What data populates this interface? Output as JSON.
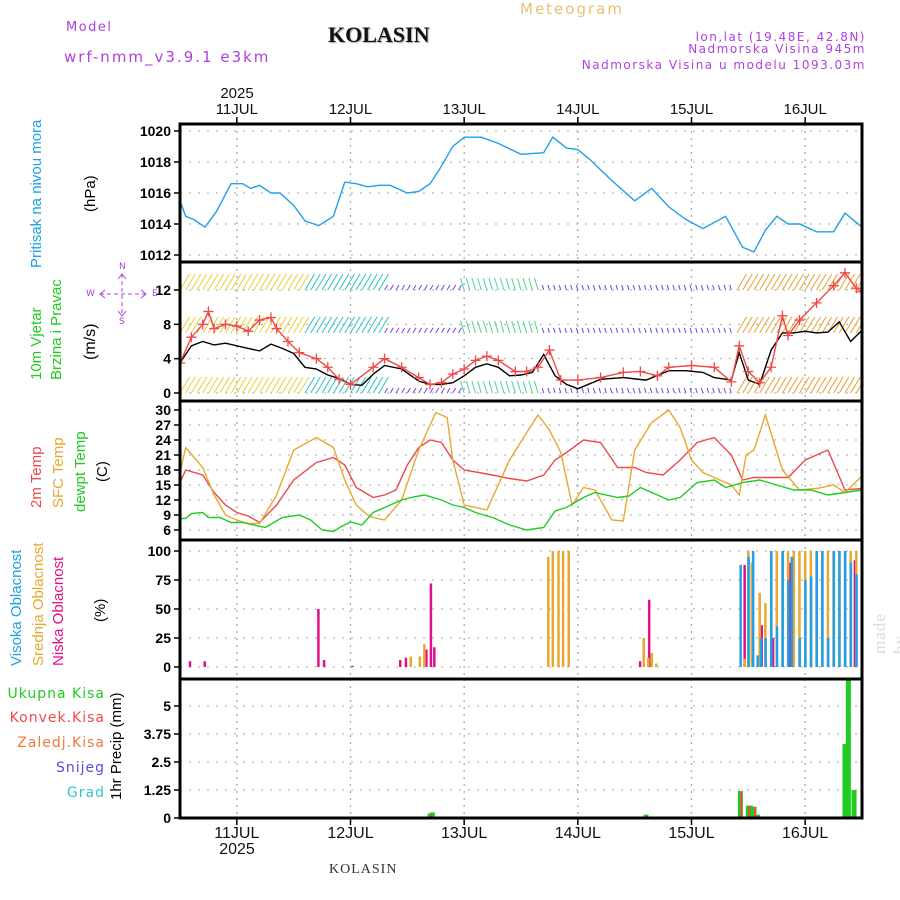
{
  "header": {
    "model_label": "Model",
    "model_name": "wrf-nmm_v3.9.1 e3km",
    "title": "KOLASIN",
    "subtitle": "Meteogram",
    "coords": "lon,lat (19.48E, 42.8N)",
    "elevation": "Nadmorska Visina 945m",
    "model_elevation": "Nadmorska Visina u modelu 1093.03m",
    "footer_station": "KOLASIN",
    "watermark": "made by Angel"
  },
  "colors": {
    "purple": "#b040e0",
    "gold": "#e8c070",
    "pressure": "#20a0e8",
    "temp2m": "#f04848",
    "sfctemp": "#e8a830",
    "dewpt": "#20cc20",
    "high_cloud": "#20a0e8",
    "mid_cloud": "#e8a830",
    "low_cloud": "#e0108a",
    "total_precip": "#20cc20",
    "conv_precip": "#f04848",
    "frz_precip": "#f07838",
    "snow": "#5050e0",
    "hail": "#30c8c8"
  },
  "time_axis": {
    "top_year": "2025",
    "bottom_year": "2025",
    "day_labels": [
      "11JUL",
      "12JUL",
      "13JUL",
      "14JUL",
      "15JUL",
      "16JUL"
    ],
    "start_day": 10.5,
    "end_day": 16.5
  },
  "chart_data": [
    {
      "type": "line",
      "name": "pressure",
      "ylabel_main": "Pritisak na nivou mora",
      "ylabel_unit": "(hPa)",
      "ylim": [
        1012,
        1020.5
      ],
      "yticks": [
        1012,
        1014,
        1016,
        1018,
        1020
      ],
      "ytick_labels": [
        "1012",
        "1014",
        "1016",
        "1018",
        "1020"
      ],
      "grid": true,
      "series": [
        {
          "name": "MSLP",
          "color_key": "pressure",
          "x": [
            10.5,
            10.55,
            10.62,
            10.72,
            10.82,
            10.95,
            11.05,
            11.12,
            11.2,
            11.3,
            11.38,
            11.5,
            11.6,
            11.72,
            11.85,
            11.95,
            12.05,
            12.15,
            12.25,
            12.35,
            12.5,
            12.6,
            12.7,
            12.78,
            12.9,
            13.0,
            13.15,
            13.3,
            13.5,
            13.7,
            13.78,
            13.9,
            14.0,
            14.1,
            14.3,
            14.5,
            14.65,
            14.8,
            14.95,
            15.1,
            15.3,
            15.45,
            15.55,
            15.65,
            15.75,
            15.85,
            15.95,
            16.1,
            16.25,
            16.35,
            16.45,
            16.5
          ],
          "values": [
            1015.5,
            1014.5,
            1014.3,
            1013.8,
            1014.8,
            1016.6,
            1016.6,
            1016.3,
            1016.5,
            1016.0,
            1016.0,
            1015.2,
            1014.2,
            1013.9,
            1014.5,
            1016.7,
            1016.6,
            1016.4,
            1016.5,
            1016.5,
            1016.0,
            1016.1,
            1016.6,
            1017.5,
            1019.0,
            1019.6,
            1019.6,
            1019.2,
            1018.5,
            1018.6,
            1019.6,
            1018.9,
            1018.8,
            1018.2,
            1016.8,
            1015.5,
            1016.3,
            1015.1,
            1014.3,
            1013.7,
            1014.5,
            1012.5,
            1012.2,
            1013.6,
            1014.5,
            1014.0,
            1014.0,
            1013.5,
            1013.5,
            1014.7,
            1014.1,
            1013.8
          ]
        }
      ]
    },
    {
      "type": "line",
      "name": "wind",
      "ylabel_main": "10m Vjetar",
      "ylabel_sub": "Brzina i Pravac",
      "ylabel_unit": "(m/s)",
      "compass": {
        "n": "N",
        "s": "S",
        "e": "E",
        "w": "W"
      },
      "ylim": [
        -0.5,
        13.5
      ],
      "yticks": [
        0,
        4,
        8,
        12
      ],
      "ytick_labels": [
        "0",
        "4",
        "8",
        "12"
      ],
      "grid": true,
      "series": [
        {
          "name": "Wind speed",
          "color": "#000000",
          "x": [
            10.5,
            10.6,
            10.7,
            10.8,
            10.9,
            11.0,
            11.1,
            11.2,
            11.3,
            11.4,
            11.5,
            11.6,
            11.7,
            11.8,
            11.9,
            12.0,
            12.1,
            12.2,
            12.3,
            12.45,
            12.6,
            12.7,
            12.8,
            12.9,
            13.0,
            13.1,
            13.2,
            13.3,
            13.4,
            13.5,
            13.6,
            13.7,
            13.8,
            13.9,
            14.0,
            14.2,
            14.4,
            14.6,
            14.8,
            14.95,
            15.1,
            15.2,
            15.35,
            15.42,
            15.5,
            15.6,
            15.7,
            15.8,
            15.9,
            16.0,
            16.1,
            16.2,
            16.3,
            16.4,
            16.5
          ],
          "values": [
            3.5,
            5.5,
            6.0,
            5.6,
            5.8,
            5.5,
            5.2,
            4.9,
            5.7,
            5.2,
            4.6,
            3.0,
            2.8,
            2.1,
            1.7,
            1.0,
            0.9,
            2.2,
            3.2,
            2.8,
            1.4,
            1.0,
            1.0,
            1.2,
            2.0,
            3.0,
            3.4,
            3.0,
            2.0,
            2.1,
            2.4,
            4.5,
            2.0,
            1.0,
            0.5,
            1.6,
            1.8,
            1.5,
            2.6,
            2.6,
            2.4,
            1.8,
            1.5,
            4.7,
            1.5,
            1.0,
            5.0,
            7.0,
            7.0,
            7.2,
            7.0,
            7.1,
            8.3,
            6.0,
            7.3
          ]
        },
        {
          "name": "Wind gust",
          "color": "#f04848",
          "x": [
            10.5,
            10.6,
            10.7,
            10.75,
            10.8,
            10.9,
            11.0,
            11.1,
            11.2,
            11.3,
            11.35,
            11.45,
            11.55,
            11.7,
            11.8,
            11.9,
            12.0,
            12.2,
            12.3,
            12.45,
            12.6,
            12.7,
            12.8,
            12.9,
            13.0,
            13.1,
            13.2,
            13.3,
            13.45,
            13.55,
            13.65,
            13.75,
            13.85,
            14.0,
            14.2,
            14.4,
            14.55,
            14.7,
            14.8,
            15.0,
            15.2,
            15.35,
            15.42,
            15.5,
            15.6,
            15.7,
            15.8,
            15.85,
            15.95,
            16.1,
            16.25,
            16.35,
            16.45,
            16.5
          ],
          "values": [
            3.5,
            6.5,
            8.0,
            9.5,
            7.5,
            8.0,
            7.8,
            7.2,
            8.5,
            8.8,
            7.5,
            6.0,
            4.7,
            4.0,
            3.0,
            1.6,
            1.0,
            3.0,
            4.0,
            3.0,
            1.8,
            1.0,
            1.2,
            2.2,
            2.8,
            3.8,
            4.3,
            3.8,
            2.5,
            2.5,
            3.0,
            5.0,
            1.5,
            1.5,
            1.8,
            2.4,
            2.5,
            2.0,
            3.0,
            3.2,
            3.0,
            1.3,
            5.5,
            2.5,
            1.2,
            3.0,
            9.0,
            6.7,
            8.5,
            10.5,
            12.5,
            14.0,
            12.2,
            11.8
          ]
        }
      ],
      "barb_rows": [
        0,
        7,
        12
      ]
    },
    {
      "type": "line",
      "name": "temperature",
      "ylabel_lines": [
        "2m Temp",
        "SFC Temp",
        "dewpt Temp"
      ],
      "ylabel_unit": "(C)",
      "ylim": [
        5,
        31
      ],
      "yticks": [
        6,
        9,
        12,
        15,
        18,
        21,
        24,
        27,
        30
      ],
      "ytick_labels": [
        "6",
        "9",
        "12",
        "15",
        "18",
        "21",
        "24",
        "27",
        "30"
      ],
      "grid": true,
      "series": [
        {
          "name": "2m Temp",
          "color_key": "temp2m",
          "x": [
            10.5,
            10.55,
            10.7,
            10.8,
            10.9,
            11.0,
            11.1,
            11.2,
            11.35,
            11.5,
            11.7,
            11.85,
            11.95,
            12.05,
            12.2,
            12.3,
            12.4,
            12.5,
            12.6,
            12.7,
            12.8,
            12.9,
            13.0,
            13.2,
            13.4,
            13.55,
            13.7,
            13.8,
            13.9,
            14.05,
            14.2,
            14.35,
            14.5,
            14.6,
            14.75,
            14.9,
            15.05,
            15.2,
            15.35,
            15.45,
            15.55,
            15.7,
            15.85,
            16.0,
            16.2,
            16.35,
            16.5
          ],
          "values": [
            15.5,
            18,
            17,
            13.5,
            11,
            9.5,
            8.8,
            7.5,
            11,
            16,
            19.5,
            20.5,
            19,
            14.5,
            12.5,
            13,
            14,
            19,
            22.5,
            24.0,
            23.5,
            20,
            18,
            17.2,
            16.3,
            15.8,
            17,
            20,
            21.5,
            24,
            23.5,
            18.5,
            18.5,
            17.5,
            17,
            20,
            23.5,
            24.5,
            21,
            16,
            16.5,
            16.5,
            16.5,
            20,
            22,
            14,
            14.3
          ]
        },
        {
          "name": "SFC Temp",
          "color_key": "sfctemp",
          "x": [
            10.5,
            10.55,
            10.7,
            10.8,
            10.9,
            11.0,
            11.1,
            11.2,
            11.35,
            11.5,
            11.7,
            11.85,
            11.95,
            12.05,
            12.15,
            12.2,
            12.3,
            12.45,
            12.6,
            12.75,
            12.85,
            12.9,
            13.0,
            13.2,
            13.4,
            13.55,
            13.65,
            13.75,
            13.85,
            13.95,
            14.05,
            14.15,
            14.3,
            14.4,
            14.5,
            14.65,
            14.8,
            14.9,
            15.0,
            15.1,
            15.25,
            15.35,
            15.42,
            15.48,
            15.55,
            15.65,
            15.8,
            15.95,
            16.1,
            16.25,
            16.35,
            16.5
          ],
          "values": [
            17.5,
            22.5,
            18.5,
            13,
            9,
            8,
            7.3,
            7.3,
            13,
            22,
            24.5,
            22.5,
            16,
            11,
            9,
            8.5,
            8,
            12,
            22,
            29.5,
            28.5,
            20,
            11,
            10,
            20,
            25.5,
            29,
            26,
            21.5,
            11,
            14.5,
            14,
            8,
            7.8,
            22,
            27.5,
            30,
            26.5,
            20,
            17.5,
            16,
            15,
            13,
            21,
            22,
            29,
            18,
            14,
            14.3,
            15,
            13.5,
            16.8
          ]
        },
        {
          "name": "dewpt Temp",
          "color_key": "dewpt",
          "x": [
            10.5,
            10.55,
            10.6,
            10.7,
            10.75,
            10.85,
            10.95,
            11.05,
            11.15,
            11.25,
            11.4,
            11.55,
            11.65,
            11.75,
            11.85,
            11.92,
            12.0,
            12.1,
            12.2,
            12.3,
            12.45,
            12.55,
            12.65,
            12.8,
            12.9,
            13.0,
            13.1,
            13.25,
            13.4,
            13.55,
            13.7,
            13.8,
            13.9,
            14.05,
            14.15,
            14.35,
            14.45,
            14.55,
            14.7,
            14.8,
            14.9,
            15.05,
            15.2,
            15.3,
            15.45,
            15.6,
            15.75,
            15.9,
            16.05,
            16.2,
            16.35,
            16.5
          ],
          "values": [
            8.3,
            8.3,
            9.3,
            9.5,
            8.5,
            8.5,
            7.5,
            7.5,
            7.0,
            6.5,
            8.5,
            9.0,
            8.0,
            6.0,
            5.7,
            6.7,
            7.6,
            7.0,
            9.5,
            10.5,
            12.0,
            12.6,
            13.0,
            12.0,
            11.0,
            10.5,
            9.5,
            8.5,
            7.0,
            6.0,
            6.5,
            9.8,
            10.5,
            12.5,
            13.5,
            12.5,
            12.8,
            14.5,
            13.0,
            12.0,
            12.5,
            15.5,
            16.0,
            14.5,
            15.5,
            16.0,
            15.0,
            14.0,
            14.0,
            13.0,
            13.5,
            14.0
          ]
        }
      ]
    },
    {
      "type": "bar",
      "name": "cloud",
      "ylabel_lines": [
        "Visoka Oblacnost",
        "Srednja Oblacnost",
        "Niska Oblacnost"
      ],
      "ylabel_unit": "(%)",
      "ylim": [
        0,
        100
      ],
      "yticks": [
        0,
        25,
        50,
        75,
        100
      ],
      "ytick_labels": [
        "0",
        "25",
        "50",
        "75",
        "100"
      ],
      "grid": true,
      "series": [
        {
          "name": "Niska Oblacnost",
          "color_key": "low_cloud",
          "x": [
            10.57,
            10.7,
            11.7,
            11.75,
            12.0,
            12.42,
            12.47,
            12.65,
            12.69,
            12.72,
            14.53,
            14.61,
            15.45,
            15.6,
            15.7,
            15.85,
            16.42
          ],
          "values": [
            5,
            5,
            50,
            6,
            1,
            6,
            8,
            15,
            72,
            17,
            5,
            58,
            88,
            36,
            25,
            90,
            92
          ]
        },
        {
          "name": "Srednja Oblacnost",
          "color_key": "mid_cloud",
          "x": [
            12.53,
            12.61,
            12.65,
            13.74,
            13.78,
            13.83,
            13.87,
            13.92,
            14.58,
            14.62,
            14.65,
            14.69,
            15.47,
            15.5,
            15.53,
            15.6,
            15.65,
            15.7,
            15.75,
            15.8,
            15.85,
            15.9,
            15.95,
            16.0,
            16.05,
            16.1,
            16.15,
            16.2,
            16.25,
            16.3,
            16.35,
            16.4,
            16.45,
            16.5
          ],
          "values": [
            9,
            9,
            20,
            95,
            100,
            100,
            100,
            100,
            25,
            8,
            12,
            3,
            7,
            100,
            90,
            64,
            55,
            100,
            100,
            100,
            100,
            100,
            100,
            100,
            100,
            100,
            100,
            100,
            100,
            100,
            100,
            100,
            100,
            100
          ]
        },
        {
          "name": "Visoka Oblacnost",
          "color_key": "high_cloud",
          "x": [
            15.45,
            15.52,
            15.56,
            15.6,
            15.63,
            15.67,
            15.72,
            15.77,
            15.82,
            15.87,
            15.9,
            15.97,
            16.02,
            16.07,
            16.12,
            16.17,
            16.22,
            16.27,
            16.32,
            16.37,
            16.42,
            16.47
          ],
          "values": [
            88,
            95,
            100,
            10,
            25,
            25,
            100,
            35,
            100,
            75,
            95,
            25,
            75,
            78,
            100,
            100,
            25,
            100,
            100,
            100,
            90,
            80
          ]
        }
      ]
    },
    {
      "type": "bar",
      "name": "precip",
      "ylabel_main": "1hr Precip (mm)",
      "legend": [
        "Ukupna Kisa",
        "Konvek.Kisa",
        "Zaledj.Kisa",
        "Snijeg",
        "Grad"
      ],
      "ylim": [
        0,
        6.2
      ],
      "yticks": [
        0,
        1.25,
        2.5,
        3.75,
        5
      ],
      "ytick_labels": [
        "0",
        "1.25",
        "2.5",
        "3.75",
        "5"
      ],
      "grid": true,
      "series": [
        {
          "name": "Ukupna Kisa",
          "color_key": "total_precip",
          "x": [
            11.71,
            12.6,
            12.7,
            12.72,
            14.53,
            14.6,
            14.65,
            15.43,
            15.5,
            15.52,
            15.55,
            15.58,
            15.65,
            16.32,
            16.35,
            16.38,
            16.43
          ],
          "values": [
            0.03,
            0.05,
            0.2,
            0.25,
            0.05,
            0.15,
            0.05,
            1.2,
            0.55,
            0.55,
            0.5,
            0.15,
            0.05,
            0.05,
            3.3,
            6.2,
            1.25
          ]
        },
        {
          "name": "Konvek.Kisa",
          "color_key": "conv_precip",
          "x": [
            11.71,
            12.6,
            12.7,
            15.43,
            15.5,
            15.55,
            15.58,
            15.67
          ],
          "values": [
            0.03,
            0.05,
            0.15,
            1.2,
            0.55,
            0.5,
            0.1,
            0.05
          ]
        }
      ]
    }
  ]
}
